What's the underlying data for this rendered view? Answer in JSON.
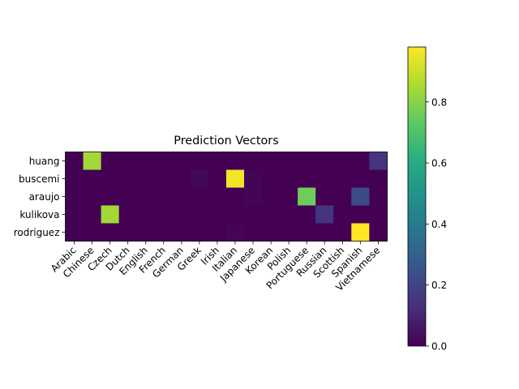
{
  "chart_data": {
    "type": "heatmap",
    "title": "Prediction Vectors",
    "xlabel": "",
    "ylabel": "",
    "rows": [
      "huang",
      "buscemi",
      "araujo",
      "kulikova",
      "rodriguez"
    ],
    "columns": [
      "Arabic",
      "Chinese",
      "Czech",
      "Dutch",
      "English",
      "French",
      "German",
      "Greek",
      "Irish",
      "Italian",
      "Japanese",
      "Korean",
      "Polish",
      "Portuguese",
      "Russian",
      "Scottish",
      "Spanish",
      "Vietnamese"
    ],
    "values": [
      [
        0.0,
        0.84,
        0.0,
        0.0,
        0.0,
        0.0,
        0.0,
        0.0,
        0.0,
        0.0,
        0.0,
        0.0,
        0.0,
        0.0,
        0.0,
        0.0,
        0.0,
        0.15
      ],
      [
        0.0,
        0.0,
        0.0,
        0.0,
        0.0,
        0.0,
        0.0,
        0.02,
        0.0,
        0.96,
        0.01,
        0.0,
        0.0,
        0.0,
        0.0,
        0.0,
        0.0,
        0.0
      ],
      [
        0.0,
        0.0,
        0.0,
        0.0,
        0.0,
        0.0,
        0.0,
        0.0,
        0.0,
        0.0,
        0.01,
        0.0,
        0.0,
        0.76,
        0.0,
        0.0,
        0.22,
        0.0
      ],
      [
        0.0,
        0.0,
        0.84,
        0.0,
        0.0,
        0.0,
        0.0,
        0.0,
        0.0,
        0.0,
        0.0,
        0.0,
        0.0,
        0.0,
        0.15,
        0.0,
        0.0,
        0.0
      ],
      [
        0.0,
        0.0,
        0.0,
        0.0,
        0.0,
        0.0,
        0.0,
        0.0,
        0.0,
        0.01,
        0.0,
        0.0,
        0.0,
        0.0,
        0.0,
        0.0,
        0.98,
        0.0
      ]
    ],
    "colorbar": {
      "colormap": "viridis",
      "range": [
        0.0,
        0.98
      ],
      "ticks": [
        "0.0",
        "0.2",
        "0.4",
        "0.6",
        "0.8"
      ],
      "tick_values": [
        0.0,
        0.2,
        0.4,
        0.6,
        0.8
      ]
    },
    "grid": false
  }
}
